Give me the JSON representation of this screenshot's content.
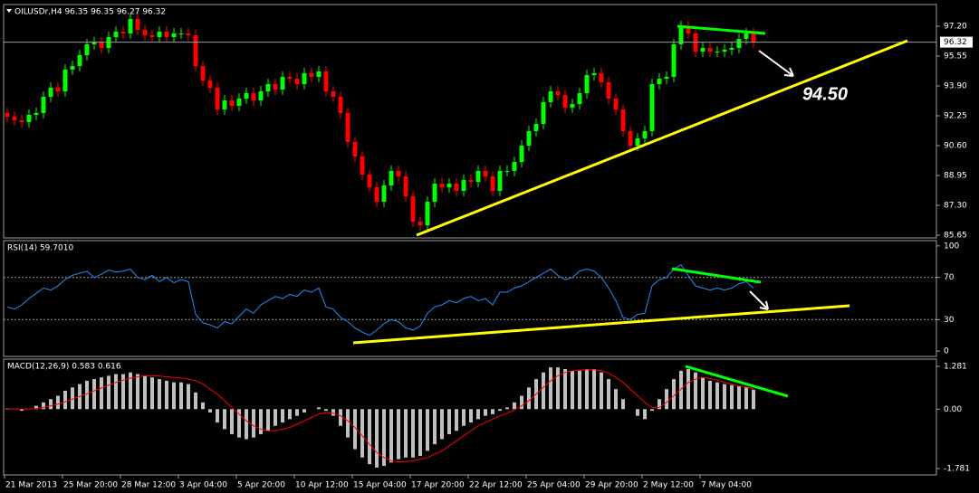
{
  "chart_data": [
    {
      "type": "candlestick",
      "title": "OILUSDr,H4  96.35 96.35 96.27 96.32",
      "ylim": [
        85.5,
        98.4
      ],
      "yticks": [
        {
          "value": 97.2,
          "label": "97.20"
        },
        {
          "value": 95.55,
          "label": "95.55"
        },
        {
          "value": 93.9,
          "label": "93.90"
        },
        {
          "value": 92.25,
          "label": "92.25"
        },
        {
          "value": 90.6,
          "label": "90.60"
        },
        {
          "value": 88.95,
          "label": "88.95"
        },
        {
          "value": 87.3,
          "label": "87.30"
        },
        {
          "value": 85.65,
          "label": "85.65"
        }
      ],
      "up_color": "#00ff00",
      "down_color": "#ff0000",
      "current_price": 96.32,
      "annotation": "94.50",
      "open": [
        92.4,
        92.2,
        92.0,
        91.9,
        92.3,
        92.4,
        93.3,
        93.8,
        93.6,
        94.8,
        95.0,
        95.6,
        96.2,
        96.3,
        96.0,
        96.6,
        96.9,
        96.8,
        97.6,
        97.0,
        96.7,
        96.6,
        96.9,
        96.6,
        96.8,
        96.8,
        96.7,
        95.0,
        94.2,
        93.8,
        92.6,
        93.1,
        92.8,
        93.2,
        93.5,
        93.1,
        93.6,
        94.0,
        93.7,
        94.4,
        94.3,
        94.0,
        94.6,
        94.4,
        94.7,
        93.6,
        93.3,
        92.4,
        90.8,
        90.0,
        89.0,
        88.3,
        87.5,
        88.4,
        89.2,
        88.9,
        87.8,
        86.4,
        86.2,
        87.5,
        88.5,
        88.3,
        88.5,
        88.1,
        88.7,
        88.6,
        89.2,
        88.9,
        88.1,
        89.2,
        89.2,
        89.7,
        90.6,
        91.4,
        91.8,
        93.0,
        93.6,
        93.4,
        92.7,
        92.9,
        93.5,
        94.5,
        94.6,
        94.1,
        93.2,
        92.6,
        91.4,
        90.6,
        91.0,
        91.4,
        94.0,
        94.3,
        94.4,
        96.2,
        97.2,
        96.8,
        95.8,
        96.0,
        95.8,
        95.8,
        95.9,
        96.0,
        96.5,
        96.8
      ],
      "high": [
        92.7,
        92.5,
        92.3,
        92.6,
        92.7,
        93.6,
        94.1,
        94.1,
        95.1,
        95.3,
        95.9,
        96.5,
        96.6,
        96.6,
        96.9,
        97.2,
        97.2,
        97.9,
        97.9,
        97.3,
        97.0,
        97.2,
        97.2,
        97.1,
        97.1,
        97.1,
        97.0,
        95.3,
        94.5,
        94.1,
        93.4,
        93.4,
        93.5,
        93.8,
        93.8,
        93.9,
        94.3,
        94.3,
        94.7,
        94.7,
        94.6,
        94.9,
        94.9,
        95.0,
        95.0,
        93.9,
        93.6,
        92.7,
        91.1,
        90.3,
        89.3,
        88.6,
        88.7,
        89.5,
        89.5,
        89.2,
        88.1,
        86.7,
        87.8,
        88.8,
        88.8,
        88.8,
        88.8,
        89.0,
        89.0,
        89.5,
        89.5,
        89.2,
        89.5,
        89.5,
        90.0,
        90.9,
        91.7,
        92.1,
        93.3,
        93.9,
        93.9,
        93.7,
        93.2,
        93.8,
        94.8,
        94.9,
        94.9,
        94.4,
        93.5,
        92.9,
        91.7,
        91.3,
        91.7,
        94.3,
        94.6,
        94.7,
        96.5,
        97.5,
        97.5,
        97.1,
        96.3,
        96.3,
        96.1,
        96.2,
        96.3,
        96.8,
        97.1,
        97.1
      ],
      "low": [
        91.9,
        91.7,
        91.6,
        91.6,
        92.0,
        92.1,
        93.0,
        93.3,
        93.3,
        94.5,
        94.7,
        95.3,
        95.9,
        95.7,
        95.7,
        96.3,
        96.5,
        96.5,
        96.7,
        96.4,
        96.3,
        96.3,
        96.3,
        96.3,
        96.5,
        96.4,
        94.7,
        93.9,
        93.5,
        92.3,
        92.3,
        92.5,
        92.5,
        92.9,
        92.8,
        92.8,
        93.3,
        93.4,
        93.4,
        94.0,
        93.7,
        93.7,
        94.1,
        94.1,
        93.3,
        93.0,
        92.1,
        90.5,
        89.7,
        88.7,
        88.0,
        87.2,
        87.2,
        88.1,
        88.6,
        87.5,
        86.1,
        85.9,
        85.9,
        87.2,
        88.0,
        88.0,
        87.8,
        87.8,
        88.3,
        88.3,
        88.6,
        87.8,
        87.8,
        88.9,
        88.9,
        89.4,
        90.3,
        91.1,
        91.5,
        92.7,
        93.1,
        92.4,
        92.4,
        92.6,
        93.2,
        94.2,
        93.8,
        92.9,
        92.3,
        91.1,
        90.3,
        90.3,
        90.7,
        91.1,
        93.7,
        94.0,
        94.1,
        95.9,
        96.5,
        95.5,
        95.5,
        95.5,
        95.5,
        95.5,
        95.6,
        95.7,
        96.2,
        96.0
      ],
      "close": [
        92.2,
        92.0,
        91.9,
        92.3,
        92.4,
        93.3,
        93.8,
        93.6,
        94.8,
        95.0,
        95.6,
        96.2,
        96.3,
        96.0,
        96.6,
        96.9,
        96.8,
        97.6,
        97.0,
        96.7,
        96.6,
        96.9,
        96.6,
        96.8,
        96.8,
        96.7,
        95.0,
        94.2,
        93.8,
        92.6,
        93.1,
        92.8,
        93.2,
        93.5,
        93.1,
        93.6,
        94.0,
        93.7,
        94.4,
        94.3,
        94.0,
        94.6,
        94.4,
        94.7,
        93.6,
        93.3,
        92.4,
        90.8,
        90.0,
        89.0,
        88.3,
        87.5,
        88.4,
        89.2,
        88.9,
        87.8,
        86.4,
        86.2,
        87.5,
        88.5,
        88.3,
        88.5,
        88.1,
        88.7,
        88.6,
        89.2,
        88.9,
        88.1,
        89.2,
        89.2,
        89.7,
        90.6,
        91.4,
        91.8,
        93.0,
        93.6,
        93.4,
        92.7,
        92.9,
        93.5,
        94.5,
        94.6,
        94.1,
        93.2,
        92.6,
        91.4,
        90.6,
        91.0,
        91.4,
        94.0,
        94.3,
        94.4,
        96.2,
        97.2,
        96.8,
        95.8,
        96.0,
        95.8,
        95.8,
        95.9,
        96.0,
        96.5,
        96.8,
        96.32
      ]
    },
    {
      "type": "line",
      "title": "RSI(14) 59.7010",
      "ylim": [
        -5,
        105
      ],
      "yticks": [
        100,
        70,
        30,
        0
      ],
      "levels": [
        70,
        30
      ],
      "color": "#1e90ff",
      "values": [
        42,
        40,
        44,
        50,
        55,
        60,
        58,
        62,
        68,
        72,
        74,
        76,
        70,
        73,
        77,
        75,
        76,
        78,
        70,
        68,
        72,
        66,
        70,
        65,
        68,
        66,
        35,
        27,
        25,
        22,
        28,
        26,
        33,
        40,
        36,
        44,
        48,
        52,
        50,
        54,
        52,
        58,
        56,
        60,
        42,
        40,
        32,
        28,
        22,
        18,
        15,
        20,
        26,
        30,
        28,
        22,
        20,
        24,
        36,
        42,
        44,
        48,
        46,
        50,
        52,
        48,
        50,
        44,
        56,
        56,
        60,
        62,
        66,
        70,
        74,
        78,
        72,
        68,
        70,
        76,
        78,
        76,
        70,
        60,
        48,
        32,
        30,
        35,
        36,
        62,
        68,
        70,
        78,
        82,
        72,
        62,
        60,
        58,
        60,
        58,
        60,
        64,
        66,
        59.701
      ]
    },
    {
      "type": "bar",
      "title": "MACD(12,26,9) 0.583 0.616",
      "ylim": [
        -1.971,
        1.498
      ],
      "yticks": [
        1.281,
        {
          "value": 0,
          "label": "0.00"
        },
        -1.781
      ],
      "categories": [
        "21 Mar 2013",
        null,
        null,
        null,
        null,
        null,
        null,
        null,
        "25 Mar 20:00",
        null,
        null,
        null,
        null,
        null,
        null,
        null,
        "28 Mar 12:00",
        null,
        null,
        null,
        null,
        null,
        null,
        null,
        "3 Apr 04:00",
        null,
        null,
        null,
        null,
        null,
        null,
        null,
        "5 Apr 20:00",
        null,
        null,
        null,
        null,
        null,
        null,
        null,
        "10 Apr 12:00",
        null,
        null,
        null,
        null,
        null,
        null,
        null,
        "15 Apr 04:00",
        null,
        null,
        null,
        null,
        null,
        null,
        null,
        "17 Apr 20:00",
        null,
        null,
        null,
        null,
        null,
        null,
        null,
        "22 Apr 12:00",
        null,
        null,
        null,
        null,
        null,
        null,
        null,
        "25 Apr 04:00",
        null,
        null,
        null,
        null,
        null,
        null,
        null,
        "29 Apr 20:00",
        null,
        null,
        null,
        null,
        null,
        null,
        null,
        "2 May 12:00",
        null,
        null,
        null,
        null,
        null,
        null,
        null,
        "7 May 04:00",
        null,
        null,
        null,
        null,
        null,
        null,
        null
      ],
      "series": [
        {
          "type": "bar",
          "color": "#c0c0c0",
          "values": [
            0.02,
            0,
            -0.05,
            0,
            0.1,
            0.2,
            0.3,
            0.4,
            0.55,
            0.65,
            0.75,
            0.85,
            0.9,
            0.95,
            1.0,
            1.05,
            1.05,
            1.1,
            1.05,
            1.0,
            0.95,
            0.9,
            0.85,
            0.8,
            0.8,
            0.75,
            0.5,
            0.2,
            -0.1,
            -0.4,
            -0.6,
            -0.75,
            -0.85,
            -0.9,
            -0.85,
            -0.75,
            -0.65,
            -0.5,
            -0.4,
            -0.3,
            -0.2,
            -0.1,
            0,
            0.05,
            -0.05,
            -0.2,
            -0.5,
            -0.85,
            -1.2,
            -1.45,
            -1.65,
            -1.75,
            -1.7,
            -1.6,
            -1.5,
            -1.45,
            -1.45,
            -1.4,
            -1.25,
            -1.05,
            -0.9,
            -0.75,
            -0.65,
            -0.5,
            -0.4,
            -0.3,
            -0.2,
            -0.15,
            -0.05,
            0.05,
            0.2,
            0.4,
            0.65,
            0.9,
            1.1,
            1.25,
            1.25,
            1.2,
            1.15,
            1.15,
            1.2,
            1.2,
            1.1,
            0.9,
            0.6,
            0.3,
            0,
            -0.2,
            -0.3,
            -0.05,
            0.3,
            0.6,
            0.9,
            1.15,
            1.2,
            1.1,
            0.95,
            0.85,
            0.8,
            0.75,
            0.72,
            0.68,
            0.65,
            0.583
          ]
        },
        {
          "type": "line",
          "color": "#ff0000",
          "values": [
            0,
            0,
            0,
            0,
            0.02,
            0.05,
            0.1,
            0.15,
            0.22,
            0.3,
            0.38,
            0.46,
            0.55,
            0.63,
            0.72,
            0.8,
            0.87,
            0.93,
            0.97,
            1.0,
            1.0,
            0.99,
            0.97,
            0.95,
            0.93,
            0.9,
            0.85,
            0.75,
            0.6,
            0.45,
            0.25,
            0.05,
            -0.15,
            -0.35,
            -0.5,
            -0.6,
            -0.65,
            -0.65,
            -0.6,
            -0.55,
            -0.45,
            -0.35,
            -0.25,
            -0.15,
            -0.1,
            -0.12,
            -0.2,
            -0.35,
            -0.55,
            -0.8,
            -1.05,
            -1.3,
            -1.45,
            -1.55,
            -1.58,
            -1.57,
            -1.55,
            -1.5,
            -1.45,
            -1.35,
            -1.25,
            -1.1,
            -0.95,
            -0.8,
            -0.65,
            -0.5,
            -0.4,
            -0.3,
            -0.2,
            -0.12,
            -0.02,
            0.1,
            0.25,
            0.45,
            0.65,
            0.85,
            1.0,
            1.1,
            1.15,
            1.17,
            1.18,
            1.18,
            1.15,
            1.08,
            0.95,
            0.8,
            0.6,
            0.4,
            0.2,
            0.05,
            0.05,
            0.2,
            0.4,
            0.6,
            0.8,
            0.9,
            0.95,
            0.92,
            0.88,
            0.8,
            0.75,
            0.7,
            0.66,
            0.616
          ]
        }
      ]
    }
  ]
}
